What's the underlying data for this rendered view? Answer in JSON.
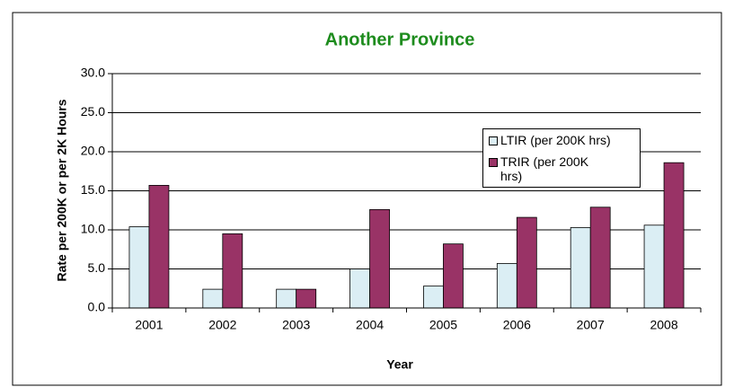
{
  "chart_data": {
    "type": "bar",
    "title": "Another Province",
    "xlabel": "Year",
    "ylabel": "Rate per 200K or per 2K Hours",
    "categories": [
      "2001",
      "2002",
      "2003",
      "2004",
      "2005",
      "2006",
      "2007",
      "2008"
    ],
    "series": [
      {
        "name": "LTIR (per 200K hrs)",
        "color": "#dbeef4",
        "values": [
          10.4,
          2.4,
          2.4,
          5.0,
          2.8,
          5.7,
          10.3,
          10.6
        ]
      },
      {
        "name": "TRIR (per 200K hrs)",
        "color": "#993366",
        "values": [
          15.7,
          9.5,
          2.4,
          12.6,
          8.2,
          11.6,
          12.9,
          18.6
        ]
      }
    ],
    "ylim": [
      0,
      30
    ],
    "yticks": [
      {
        "value": 0,
        "label": "0.0"
      },
      {
        "value": 5,
        "label": "5.0"
      },
      {
        "value": 10,
        "label": "10.0"
      },
      {
        "value": 15,
        "label": "15.0"
      },
      {
        "value": 20,
        "label": "20.0"
      },
      {
        "value": 25,
        "label": "25.0"
      },
      {
        "value": 30,
        "label": "30.0"
      }
    ],
    "grid": true
  }
}
